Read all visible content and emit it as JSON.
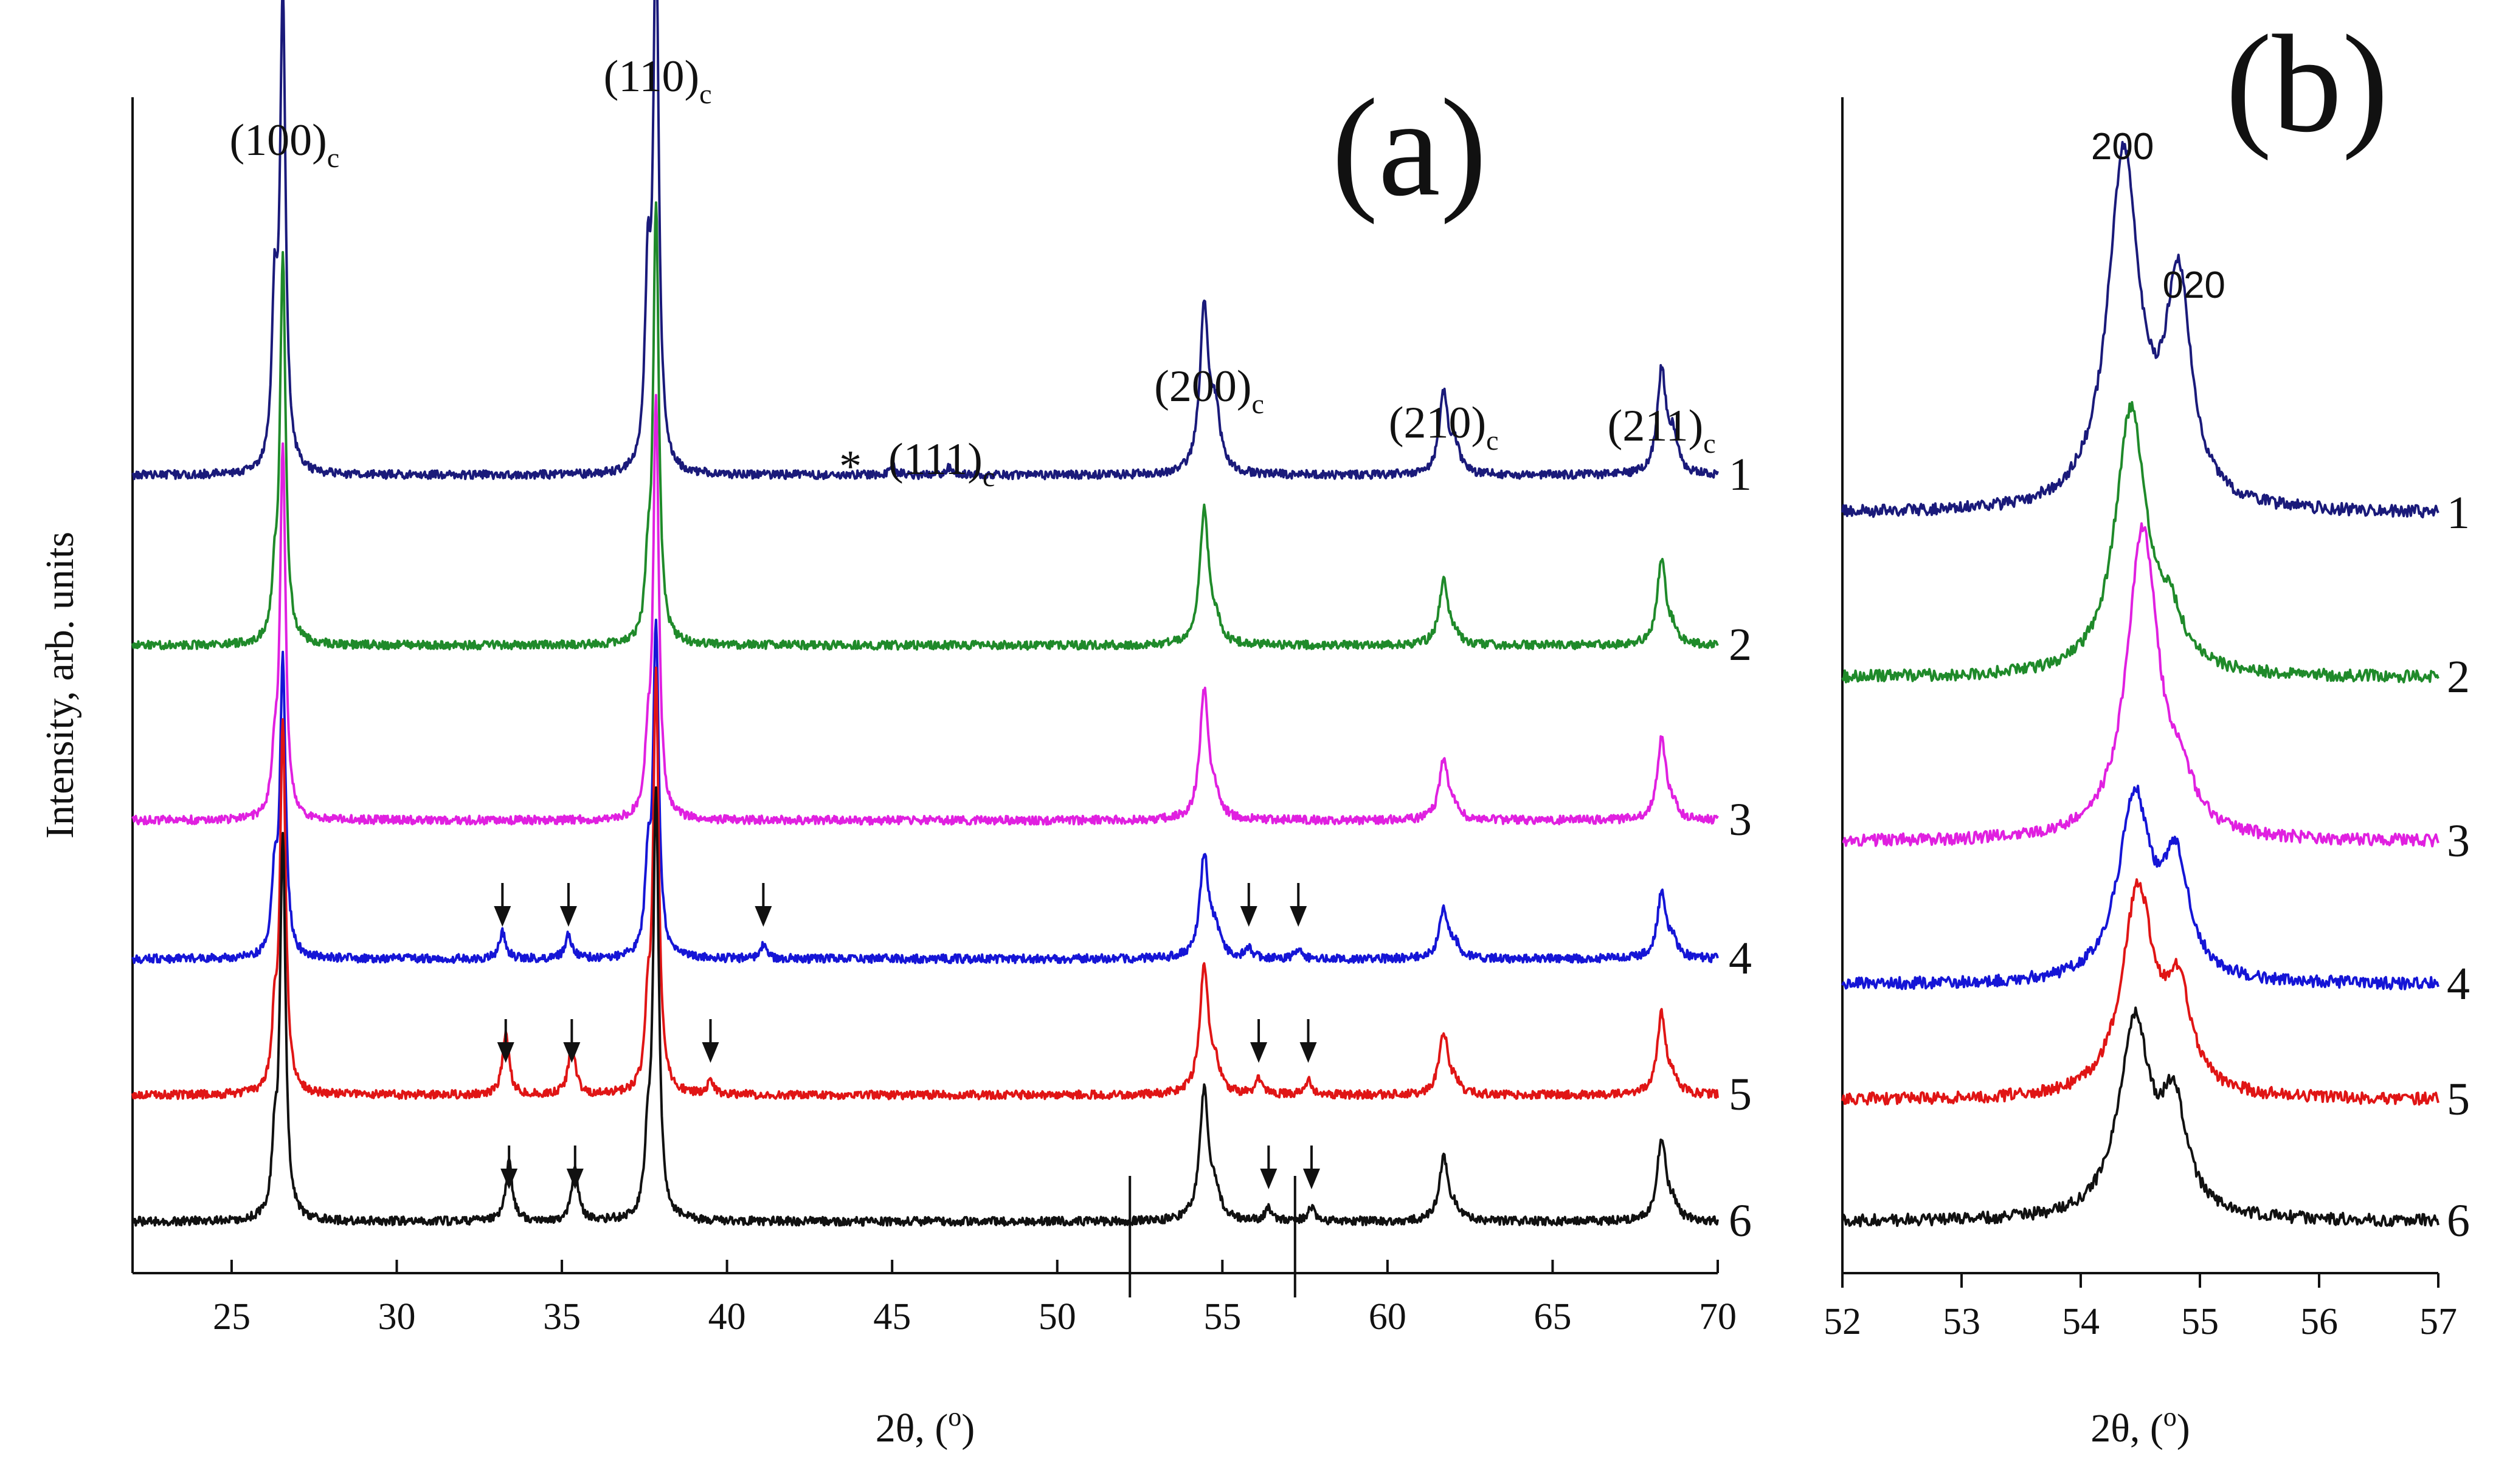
{
  "figure": {
    "y_axis_title": "Intensity, arb. units",
    "chart_data": [
      {
        "panel": "(a)",
        "type": "line",
        "xlabel": "2θ, (",
        "xlabel_sup": "o",
        "xlabel_close": ")",
        "ylabel": "Intensity, arb. units",
        "xlim": [
          22,
          70
        ],
        "xticks": [
          25,
          30,
          35,
          40,
          45,
          50,
          55,
          60,
          65,
          70
        ],
        "region_markers": [
          52.2,
          57.2
        ],
        "series": [
          {
            "name": "1",
            "color": "#1a1a7a",
            "baseline": 0,
            "scale": 1.0,
            "peak_ratio": 0.6,
            "bumps": [
              {
                "x": 45.0,
                "h": 0.015
              },
              {
                "x": 46.7,
                "h": 0.012
              }
            ]
          },
          {
            "name": "2",
            "color": "#1f8a2a",
            "baseline": 1,
            "scale": 0.82,
            "peak_ratio": 0.25,
            "bumps": []
          },
          {
            "name": "3",
            "color": "#e020e0",
            "baseline": 2,
            "scale": 0.78,
            "peak_ratio": 0.25,
            "bumps": []
          },
          {
            "name": "4",
            "color": "#1515d6",
            "baseline": 3,
            "scale": 0.62,
            "peak_ratio": 0.45,
            "bumps": [
              {
                "x": 33.2,
                "h": 0.07
              },
              {
                "x": 35.2,
                "h": 0.065
              },
              {
                "x": 41.1,
                "h": 0.035
              },
              {
                "x": 55.8,
                "h": 0.025
              },
              {
                "x": 57.3,
                "h": 0.025
              }
            ]
          },
          {
            "name": "5",
            "color": "#e01515",
            "baseline": 4,
            "scale": 0.78,
            "peak_ratio": 0.3,
            "bumps": [
              {
                "x": 33.3,
                "h": 0.13
              },
              {
                "x": 35.3,
                "h": 0.11
              },
              {
                "x": 39.5,
                "h": 0.025
              },
              {
                "x": 56.1,
                "h": 0.03
              },
              {
                "x": 57.6,
                "h": 0.03
              }
            ]
          },
          {
            "name": "6",
            "color": "#111111",
            "baseline": 5,
            "scale": 0.8,
            "peak_ratio": 0.3,
            "bumps": [
              {
                "x": 33.4,
                "h": 0.12
              },
              {
                "x": 35.4,
                "h": 0.11
              },
              {
                "x": 56.4,
                "h": 0.025
              },
              {
                "x": 57.7,
                "h": 0.03
              }
            ]
          }
        ],
        "peaks": [
          {
            "x": 26.55,
            "h": 0.78
          },
          {
            "x": 37.85,
            "h": 0.88
          },
          {
            "x": 54.45,
            "h": 0.27
          },
          {
            "x": 61.7,
            "h": 0.13
          },
          {
            "x": 68.3,
            "h": 0.17
          }
        ],
        "peak_labels": [
          {
            "text": "(100)",
            "sub": "c",
            "x": 26.6
          },
          {
            "text": "(110)",
            "sub": "c",
            "x": 37.9
          },
          {
            "text": "(111)",
            "sub": "c",
            "x": 46.5,
            "asterisk": "*"
          },
          {
            "text": "(200)",
            "sub": "c",
            "x": 54.6
          },
          {
            "text": "(210)",
            "sub": "c",
            "x": 61.7
          },
          {
            "text": "(211)",
            "sub": "c",
            "x": 68.3
          }
        ],
        "arrows": [
          {
            "series": "4",
            "x": 33.2
          },
          {
            "series": "4",
            "x": 35.2
          },
          {
            "series": "4",
            "x": 41.1
          },
          {
            "series": "4",
            "x": 55.8
          },
          {
            "series": "4",
            "x": 57.3
          },
          {
            "series": "5",
            "x": 33.3
          },
          {
            "series": "5",
            "x": 35.3
          },
          {
            "series": "5",
            "x": 39.5
          },
          {
            "series": "5",
            "x": 56.1
          },
          {
            "series": "5",
            "x": 57.6
          },
          {
            "series": "6",
            "x": 33.4
          },
          {
            "series": "6",
            "x": 35.4
          },
          {
            "series": "6",
            "x": 56.4
          },
          {
            "series": "6",
            "x": 57.7
          }
        ]
      },
      {
        "panel": "(b)",
        "type": "line",
        "xlabel": "2θ, (",
        "xlabel_sup": "o",
        "xlabel_close": ")",
        "xlim": [
          52,
          57
        ],
        "xticks": [
          52,
          53,
          54,
          55,
          56,
          57
        ],
        "peak_labels": [
          {
            "text": "200",
            "x": 54.35
          },
          {
            "text": "020",
            "x": 54.95
          }
        ],
        "series": [
          {
            "name": "1",
            "color": "#1a1a7a",
            "p200": {
              "x": 54.36,
              "h": 1.0
            },
            "p020": {
              "x": 54.82,
              "h": 0.62
            }
          },
          {
            "name": "2",
            "color": "#1f8a2a",
            "p200": {
              "x": 54.42,
              "h": 0.75
            },
            "p020": {
              "x": 54.75,
              "h": 0.12
            }
          },
          {
            "name": "3",
            "color": "#e020e0",
            "p200": {
              "x": 54.52,
              "h": 0.88
            },
            "p020": {
              "x": 54.85,
              "h": 0.1
            }
          },
          {
            "name": "4",
            "color": "#1515d6",
            "p200": {
              "x": 54.45,
              "h": 0.52
            },
            "p020": {
              "x": 54.8,
              "h": 0.32
            }
          },
          {
            "name": "5",
            "color": "#e01515",
            "p200": {
              "x": 54.48,
              "h": 0.58
            },
            "p020": {
              "x": 54.82,
              "h": 0.28
            }
          },
          {
            "name": "6",
            "color": "#111111",
            "p200": {
              "x": 54.45,
              "h": 0.55
            },
            "p020": {
              "x": 54.78,
              "h": 0.3
            }
          }
        ]
      }
    ]
  }
}
